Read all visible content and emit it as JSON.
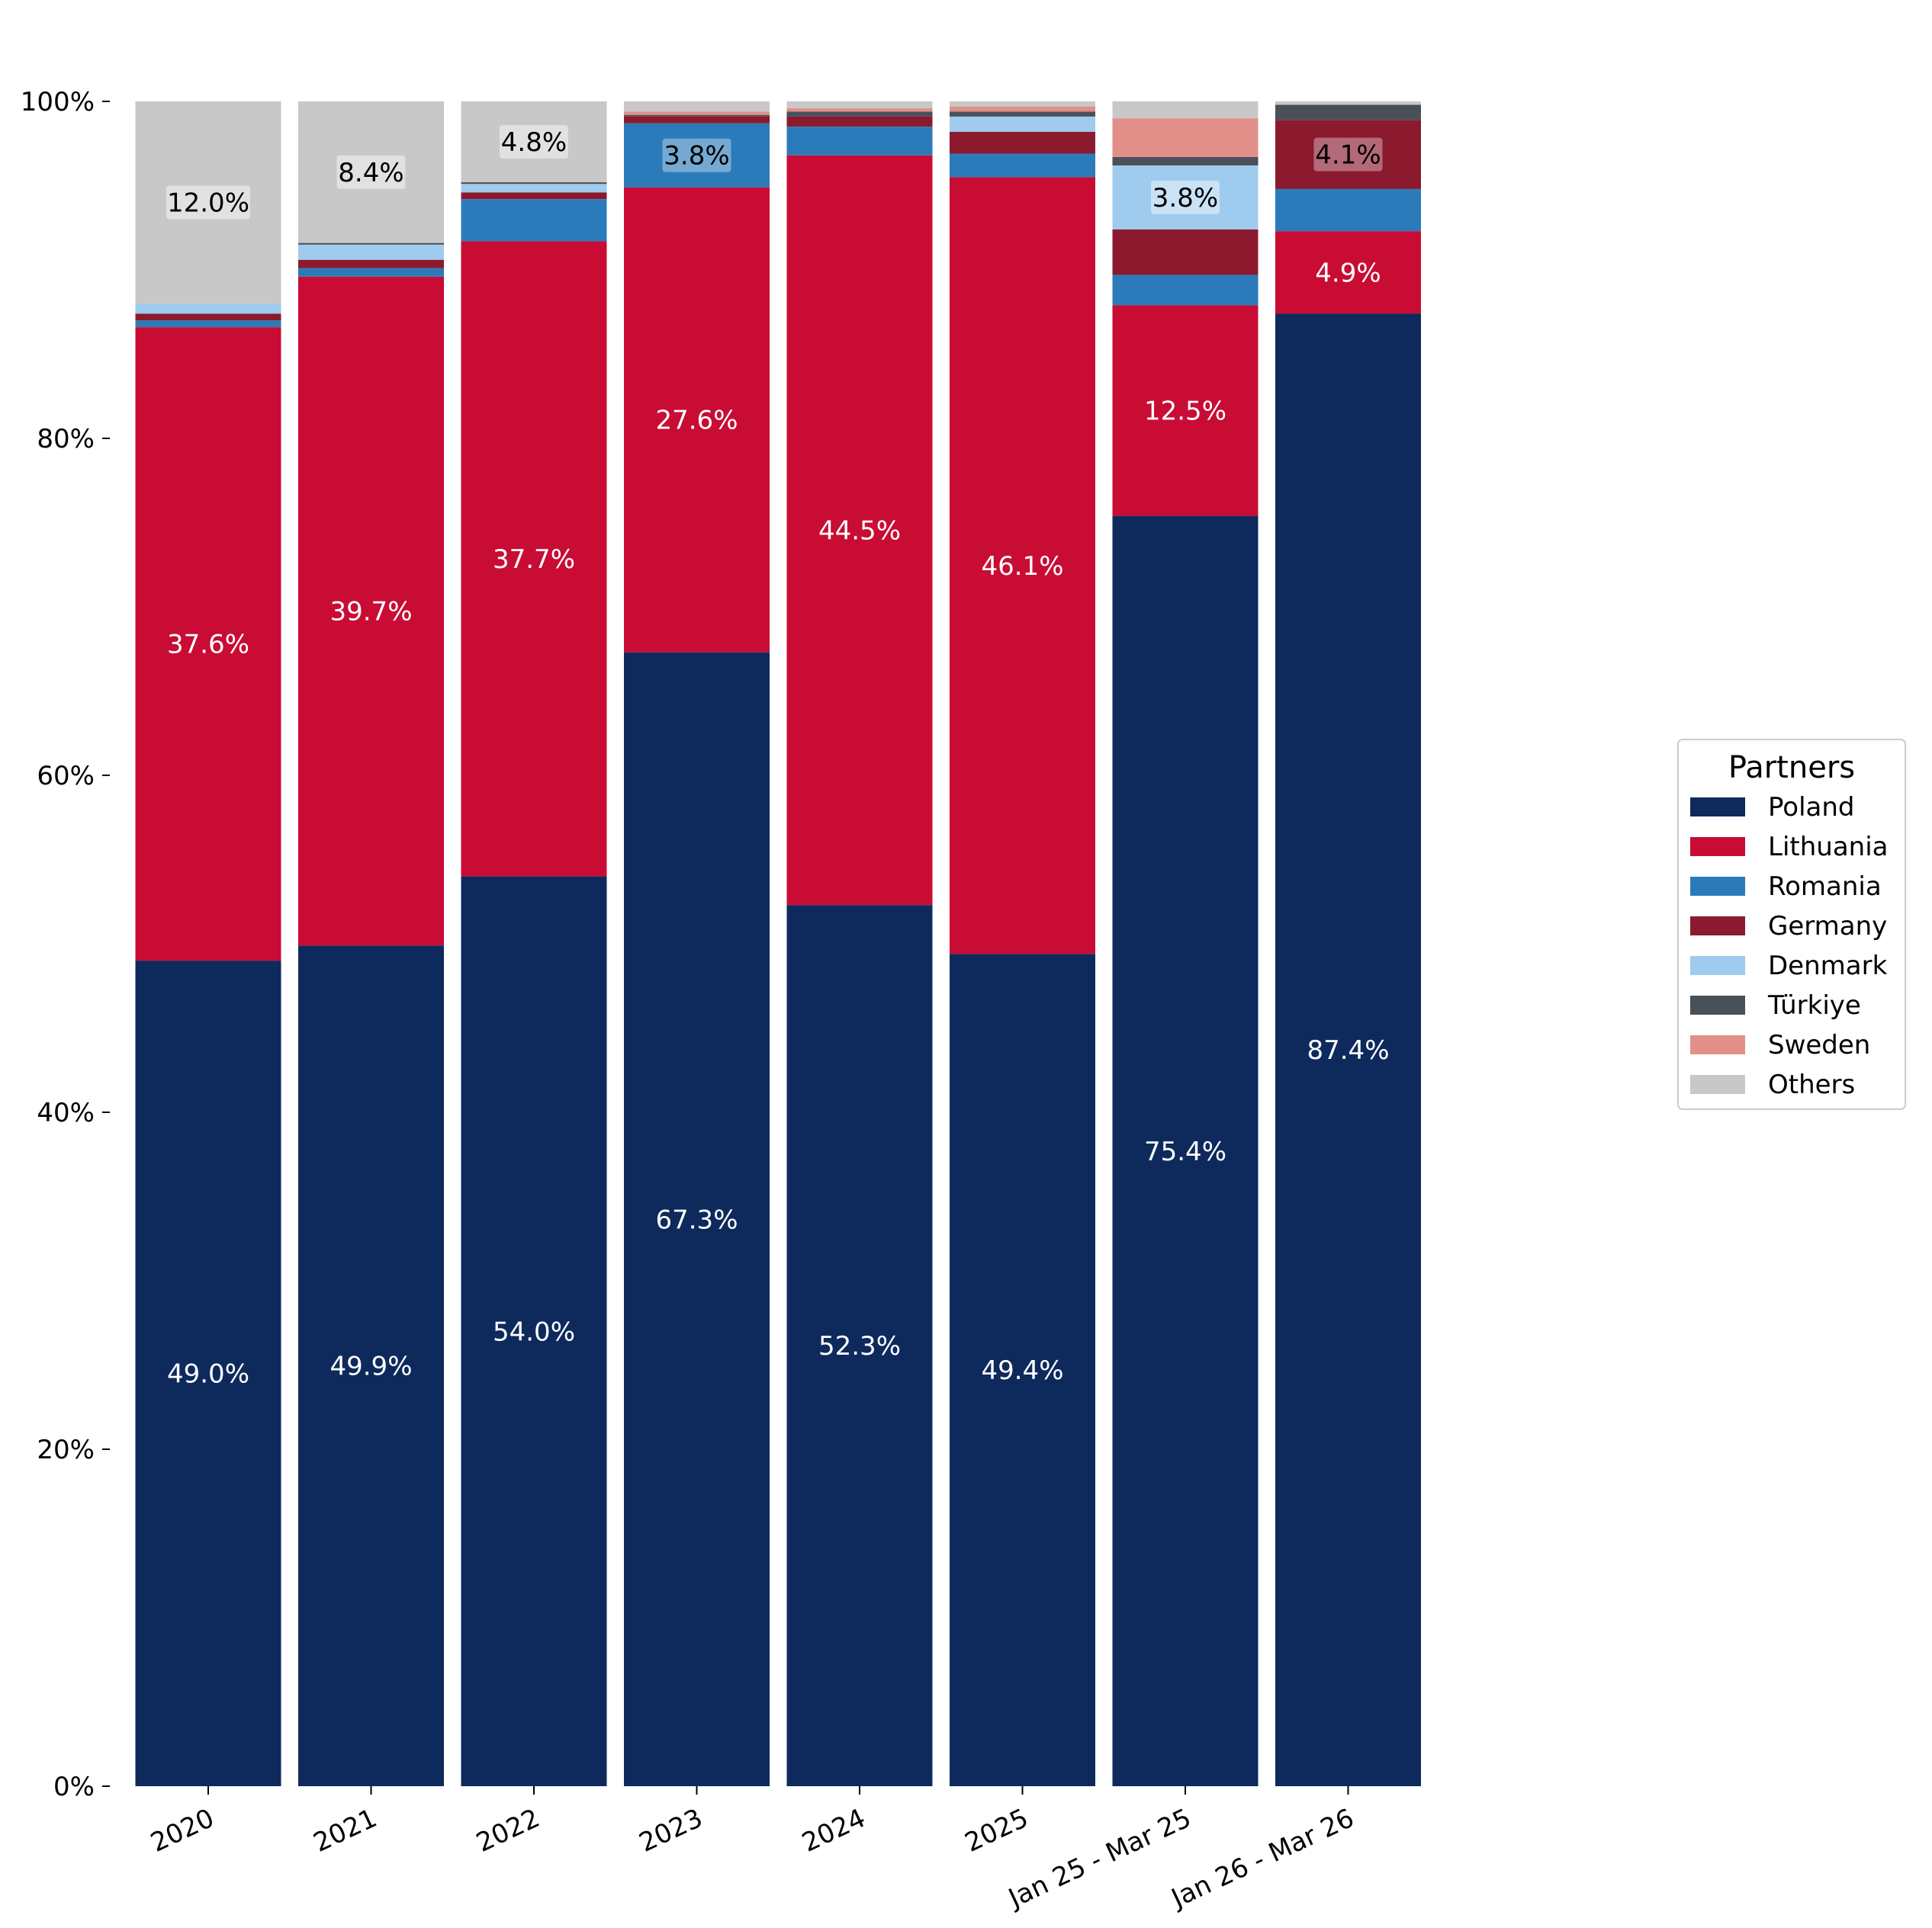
{
  "chart_data": {
    "type": "bar",
    "stacked": true,
    "categories": [
      "2020",
      "2021",
      "2022",
      "2023",
      "2024",
      "2025",
      "Jan 25 - Mar 25",
      "Jan 26 - Mar 26"
    ],
    "ylim": [
      0,
      100
    ],
    "yticks": [
      "0%",
      "20%",
      "40%",
      "60%",
      "80%",
      "100%"
    ],
    "legend": {
      "title": "Partners",
      "placement": "right"
    },
    "grid": false,
    "series": [
      {
        "name": "Poland",
        "color": "#0e2a5c",
        "values": [
          49.0,
          49.9,
          54.0,
          67.3,
          52.3,
          49.4,
          75.4,
          87.4
        ]
      },
      {
        "name": "Lithuania",
        "color": "#c90c34",
        "values": [
          37.6,
          39.7,
          37.7,
          27.6,
          44.5,
          46.1,
          12.5,
          4.9
        ]
      },
      {
        "name": "Romania",
        "color": "#2b7bbb",
        "values": [
          0.4,
          0.5,
          2.5,
          3.8,
          1.7,
          1.4,
          1.8,
          2.5
        ]
      },
      {
        "name": "Germany",
        "color": "#8b1a2e",
        "values": [
          0.4,
          0.5,
          0.4,
          0.4,
          0.6,
          1.3,
          2.7,
          4.1
        ]
      },
      {
        "name": "Denmark",
        "color": "#9ecbee",
        "values": [
          0.6,
          0.9,
          0.5,
          0.0,
          0.0,
          0.9,
          3.8,
          0.0
        ]
      },
      {
        "name": "Türkiye",
        "color": "#4a5058",
        "values": [
          0.0,
          0.1,
          0.1,
          0.1,
          0.3,
          0.3,
          0.5,
          0.9
        ]
      },
      {
        "name": "Sweden",
        "color": "#e28f8a",
        "values": [
          0.0,
          0.0,
          0.0,
          0.2,
          0.2,
          0.3,
          2.3,
          0.0
        ]
      },
      {
        "name": "Others",
        "color": "#c8c8c8",
        "values": [
          12.0,
          8.4,
          4.8,
          0.6,
          0.4,
          0.3,
          1.0,
          0.2
        ]
      }
    ],
    "data_labels": [
      [
        "49.0%",
        "37.6%",
        "",
        "",
        "",
        "",
        "",
        "12.0%"
      ],
      [
        "49.9%",
        "39.7%",
        "",
        "",
        "",
        "",
        "",
        "8.4%"
      ],
      [
        "54.0%",
        "37.7%",
        "",
        "",
        "",
        "",
        "",
        "4.8%"
      ],
      [
        "67.3%",
        "27.6%",
        "3.8%",
        "",
        "",
        "",
        "",
        ""
      ],
      [
        "52.3%",
        "44.5%",
        "",
        "",
        "",
        "",
        "",
        ""
      ],
      [
        "49.4%",
        "46.1%",
        "",
        "",
        "",
        "",
        "",
        ""
      ],
      [
        "75.4%",
        "12.5%",
        "",
        "",
        "3.8%",
        "",
        "",
        ""
      ],
      [
        "87.4%",
        "4.9%",
        "",
        "4.1%",
        "",
        "",
        "",
        ""
      ]
    ]
  }
}
